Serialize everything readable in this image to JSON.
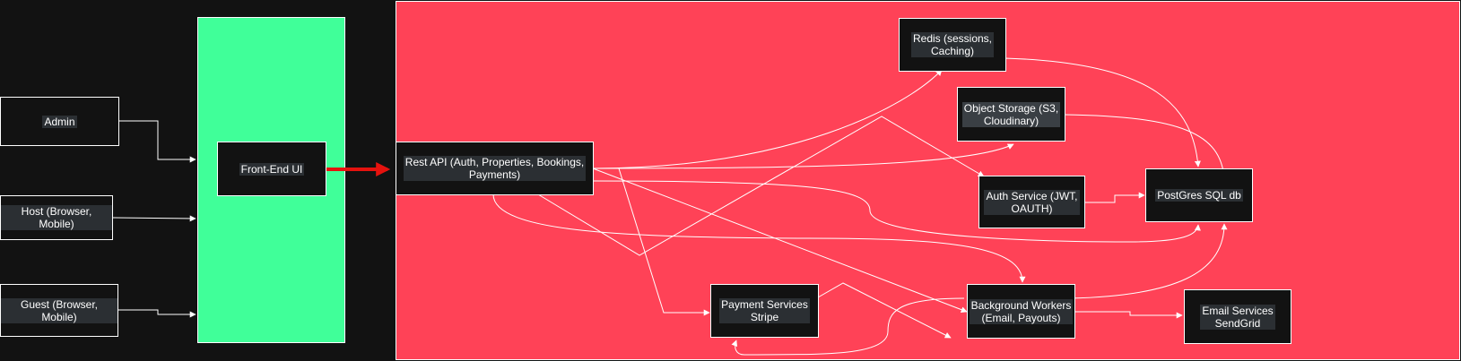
{
  "colors": {
    "canvas": "#121212",
    "frontend_region": "#40ff99",
    "backend_region": "#ff4257",
    "node_fill": "#121212",
    "node_text": "#ffffff",
    "connector": "#ffffff",
    "highlight_arrow": "#e5120e"
  },
  "clients": {
    "admin": "Admin",
    "host": "Host (Browser, Mobile)",
    "guest": "Guest (Browser, Mobile)"
  },
  "frontend": {
    "ui": "Front-End UI"
  },
  "backend": {
    "rest_api": "Rest API (Auth, Properties, Bookings,\nPayments)",
    "redis": "Redis (sessions,\nCaching)",
    "object_storage": "Object Storage (S3,\nCloudinary)",
    "auth_service": "Auth Service (JWT,\nOAUTH)",
    "postgres": "PostGres SQL db",
    "payment_services": "Payment Services\nStripe",
    "background_workers": "Background Workers\n(Email, Payouts)",
    "email_services": "Email Services\nSendGrid"
  }
}
